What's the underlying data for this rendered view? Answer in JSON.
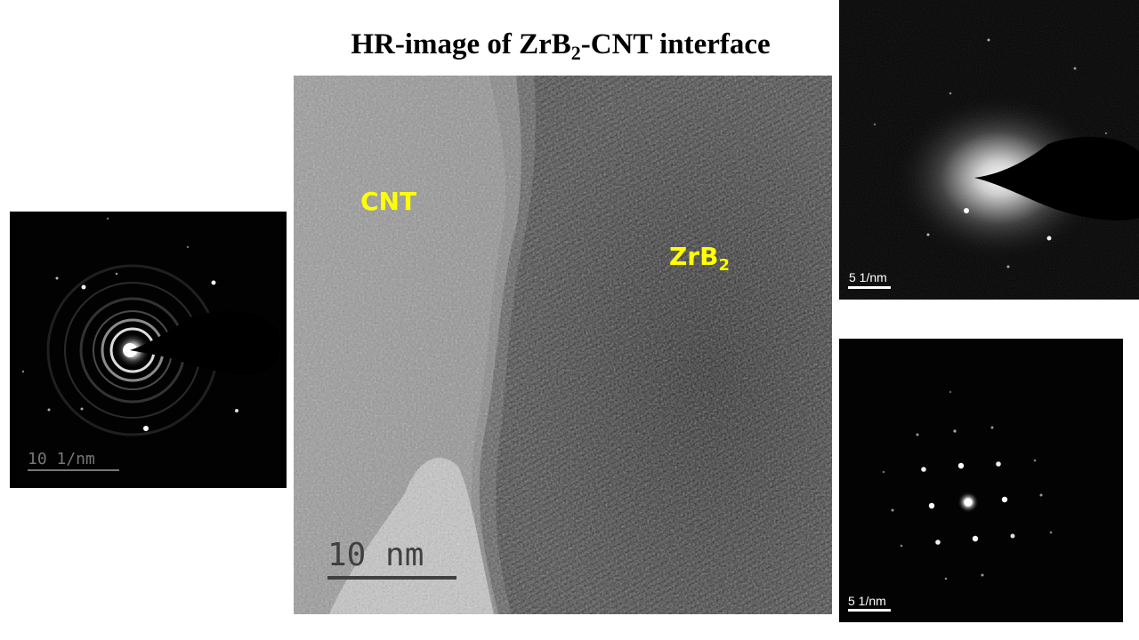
{
  "title": {
    "main": "HR-image of ZrB",
    "subscript": "2",
    "tail": "-CNT interface"
  },
  "hr_image": {
    "label_cnt": "CNT",
    "label_zrb2_main": "ZrB",
    "label_zrb2_sub": "2",
    "label_color": "#ffff00",
    "scalebar": "10 nm"
  },
  "saed_left": {
    "scalebar": "10 1/nm"
  },
  "saed_top_right": {
    "scalebar": "5 1/nm"
  },
  "saed_bottom_right": {
    "scalebar": "5 1/nm"
  }
}
